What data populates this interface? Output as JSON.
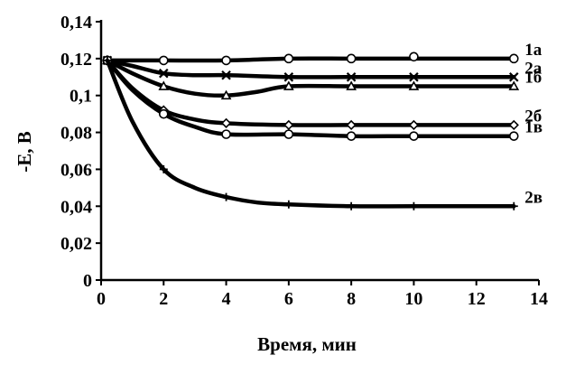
{
  "chart_data": {
    "type": "line",
    "xlabel": "Время, мин",
    "ylabel": "-E, В",
    "xlim": [
      0,
      14
    ],
    "ylim": [
      0,
      0.14
    ],
    "x_ticks": [
      "0",
      "2",
      "4",
      "6",
      "8",
      "10",
      "12",
      "14"
    ],
    "y_ticks": [
      "0",
      "0,02",
      "0,04",
      "0,06",
      "0,08",
      "0,1",
      "0,12",
      "0,14"
    ],
    "grid": false,
    "series": [
      {
        "name": "1а",
        "marker": "circle",
        "points": [
          [
            0.2,
            0.119
          ],
          [
            2,
            0.119
          ],
          [
            4,
            0.119
          ],
          [
            6,
            0.12
          ],
          [
            8,
            0.12
          ],
          [
            10,
            0.121
          ],
          [
            13.2,
            0.12
          ]
        ],
        "curve": [
          [
            0.2,
            0.119
          ],
          [
            1,
            0.119
          ],
          [
            2,
            0.119
          ],
          [
            4,
            0.119
          ],
          [
            6,
            0.12
          ],
          [
            8,
            0.12
          ],
          [
            10,
            0.12
          ],
          [
            11.5,
            0.12
          ],
          [
            13.2,
            0.12
          ]
        ]
      },
      {
        "name": "2а",
        "marker": "x",
        "points": [
          [
            0.2,
            0.119
          ],
          [
            2,
            0.112
          ],
          [
            4,
            0.111
          ],
          [
            6,
            0.11
          ],
          [
            8,
            0.11
          ],
          [
            10,
            0.11
          ],
          [
            13.2,
            0.11
          ]
        ],
        "curve": [
          [
            0.2,
            0.119
          ],
          [
            1,
            0.116
          ],
          [
            2,
            0.112
          ],
          [
            3,
            0.111
          ],
          [
            4,
            0.111
          ],
          [
            6,
            0.11
          ],
          [
            8,
            0.11
          ],
          [
            10,
            0.11
          ],
          [
            13.2,
            0.11
          ]
        ]
      },
      {
        "name": "1б",
        "marker": "triangle",
        "points": [
          [
            0.2,
            0.119
          ],
          [
            2,
            0.105
          ],
          [
            4,
            0.1
          ],
          [
            6,
            0.105
          ],
          [
            8,
            0.105
          ],
          [
            10,
            0.105
          ],
          [
            13.2,
            0.105
          ]
        ],
        "curve": [
          [
            0.2,
            0.119
          ],
          [
            1,
            0.112
          ],
          [
            2,
            0.105
          ],
          [
            3,
            0.101
          ],
          [
            4,
            0.1
          ],
          [
            5,
            0.102
          ],
          [
            6,
            0.105
          ],
          [
            8,
            0.105
          ],
          [
            10,
            0.105
          ],
          [
            13.2,
            0.105
          ]
        ]
      },
      {
        "name": "2б",
        "marker": "diamond",
        "points": [
          [
            0.2,
            0.119
          ],
          [
            2,
            0.092
          ],
          [
            4,
            0.085
          ],
          [
            6,
            0.084
          ],
          [
            8,
            0.084
          ],
          [
            10,
            0.084
          ],
          [
            13.2,
            0.084
          ]
        ],
        "curve": [
          [
            0.2,
            0.119
          ],
          [
            1,
            0.104
          ],
          [
            2,
            0.092
          ],
          [
            3,
            0.087
          ],
          [
            4,
            0.085
          ],
          [
            6,
            0.084
          ],
          [
            8,
            0.084
          ],
          [
            10,
            0.084
          ],
          [
            13.2,
            0.084
          ]
        ]
      },
      {
        "name": "1в",
        "marker": "circle",
        "points": [
          [
            0.2,
            0.119
          ],
          [
            2,
            0.09
          ],
          [
            4,
            0.079
          ],
          [
            6,
            0.079
          ],
          [
            8,
            0.078
          ],
          [
            10,
            0.078
          ],
          [
            13.2,
            0.078
          ]
        ],
        "curve": [
          [
            0.2,
            0.119
          ],
          [
            1,
            0.103
          ],
          [
            2,
            0.09
          ],
          [
            3,
            0.083
          ],
          [
            4,
            0.079
          ],
          [
            6,
            0.079
          ],
          [
            8,
            0.078
          ],
          [
            10,
            0.078
          ],
          [
            13.2,
            0.078
          ]
        ]
      },
      {
        "name": "2в",
        "marker": "plus",
        "points": [
          [
            0.2,
            0.119
          ],
          [
            2,
            0.06
          ],
          [
            4,
            0.045
          ],
          [
            6,
            0.041
          ],
          [
            8,
            0.04
          ],
          [
            10,
            0.04
          ],
          [
            13.2,
            0.04
          ]
        ],
        "curve": [
          [
            0.2,
            0.119
          ],
          [
            1,
            0.086
          ],
          [
            2,
            0.06
          ],
          [
            3,
            0.05
          ],
          [
            4,
            0.045
          ],
          [
            5,
            0.042
          ],
          [
            6,
            0.041
          ],
          [
            8,
            0.04
          ],
          [
            10,
            0.04
          ],
          [
            13.2,
            0.04
          ]
        ]
      }
    ]
  }
}
